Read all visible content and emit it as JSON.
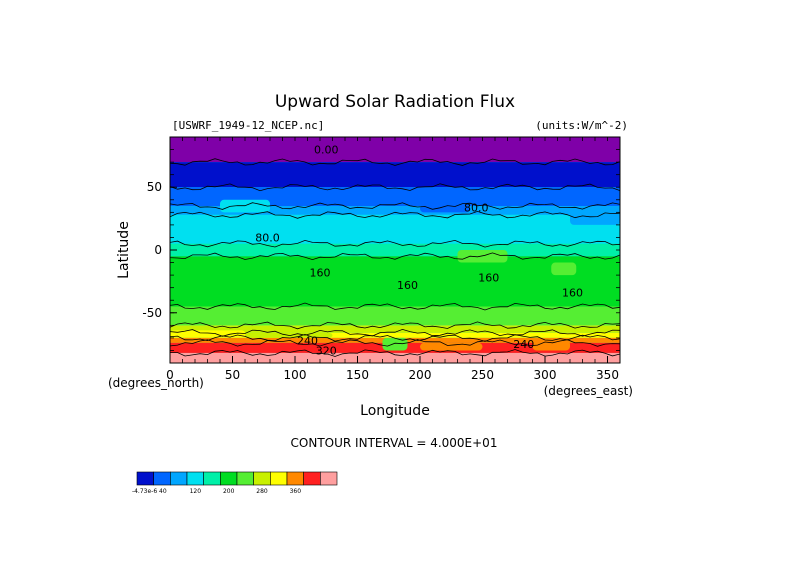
{
  "chart_data": {
    "type": "heatmap",
    "title": "Upward Solar Radiation Flux",
    "file_label": "[USWRF_1949-12_NCEP.nc]",
    "units_label": "(units:W/m^-2)",
    "xlabel": "Longitude",
    "ylabel": "Latitude",
    "x_unit_label": "(degrees_east)",
    "y_unit_label": "(degrees_north)",
    "xlim": [
      0,
      360
    ],
    "ylim": [
      -90,
      90
    ],
    "x_ticks": [
      "0",
      "50",
      "100",
      "150",
      "200",
      "250",
      "300",
      "350"
    ],
    "x_tick_values": [
      0,
      50,
      100,
      150,
      200,
      250,
      300,
      350
    ],
    "y_ticks": [
      "50",
      "0",
      "-50"
    ],
    "y_tick_values": [
      50,
      0,
      -50
    ],
    "contour_interval_label": "CONTOUR INTERVAL = 4.000E+01",
    "contour_labels": [
      {
        "text": "0.00",
        "x": 125,
        "y": 80
      },
      {
        "text": "80.0",
        "x": 245,
        "y": 34
      },
      {
        "text": "80.0",
        "x": 78,
        "y": 10
      },
      {
        "text": "160",
        "x": 120,
        "y": -18
      },
      {
        "text": "160",
        "x": 190,
        "y": -28
      },
      {
        "text": "160",
        "x": 322,
        "y": -34
      },
      {
        "text": "160",
        "x": 255,
        "y": -22
      },
      {
        "text": "240",
        "x": 110,
        "y": -72
      },
      {
        "text": "320",
        "x": 125,
        "y": -80
      },
      {
        "text": "240",
        "x": 283,
        "y": -75
      }
    ],
    "bands": [
      {
        "lat": [
          70,
          90
        ],
        "value": 0,
        "color": "#7f00a8"
      },
      {
        "lat": [
          50,
          70
        ],
        "value": 30,
        "color": "#0010cc"
      },
      {
        "lat": [
          35,
          50
        ],
        "value": 60,
        "color": "#0066ff"
      },
      {
        "lat": [
          28,
          35
        ],
        "value": 75,
        "color": "#00a6ff"
      },
      {
        "lat": [
          5,
          28
        ],
        "value": 100,
        "color": "#00e0f0"
      },
      {
        "lat": [
          -5,
          5
        ],
        "value": 130,
        "color": "#00f0a8"
      },
      {
        "lat": [
          -45,
          -5
        ],
        "value": 170,
        "color": "#00dd22"
      },
      {
        "lat": [
          -60,
          -45
        ],
        "value": 200,
        "color": "#55ee33"
      },
      {
        "lat": [
          -66,
          -60
        ],
        "value": 220,
        "color": "#c8f000"
      },
      {
        "lat": [
          -70,
          -66
        ],
        "value": 260,
        "color": "#ffff00"
      },
      {
        "lat": [
          -74,
          -70
        ],
        "value": 290,
        "color": "#ff8800"
      },
      {
        "lat": [
          -82,
          -74
        ],
        "value": 320,
        "color": "#ff2020"
      },
      {
        "lat": [
          -90,
          -82
        ],
        "value": 360,
        "color": "#ff9f9f"
      }
    ],
    "patches": [
      {
        "lon": [
          170,
          190
        ],
        "lat": [
          -80,
          -70
        ],
        "color": "#55ee33"
      },
      {
        "lon": [
          200,
          250
        ],
        "lat": [
          -80,
          -74
        ],
        "color": "#ff8800"
      },
      {
        "lon": [
          290,
          320
        ],
        "lat": [
          -80,
          -72
        ],
        "color": "#ff8800"
      },
      {
        "lon": [
          0,
          60
        ],
        "lat": [
          -68,
          -64
        ],
        "color": "#ffff00"
      },
      {
        "lon": [
          60,
          130
        ],
        "lat": [
          -70,
          -66
        ],
        "color": "#c8f000"
      },
      {
        "lon": [
          230,
          270
        ],
        "lat": [
          -10,
          0
        ],
        "color": "#55ee33"
      },
      {
        "lon": [
          305,
          325
        ],
        "lat": [
          -20,
          -10
        ],
        "color": "#55ee33"
      },
      {
        "lon": [
          40,
          80
        ],
        "lat": [
          30,
          40
        ],
        "color": "#00e0f0"
      },
      {
        "lon": [
          200,
          240
        ],
        "lat": [
          30,
          36
        ],
        "color": "#0066ff"
      },
      {
        "lon": [
          320,
          360
        ],
        "lat": [
          20,
          30
        ],
        "color": "#00a6ff"
      }
    ],
    "colorbar": {
      "colors": [
        "#0010cc",
        "#0066ff",
        "#00a6ff",
        "#00e0f0",
        "#00f0a8",
        "#00dd22",
        "#55ee33",
        "#c8f000",
        "#ffff00",
        "#ff8800",
        "#ff2020",
        "#ff9f9f"
      ],
      "labels": [
        "-4.73e-6 40",
        "120",
        "200",
        "280",
        "360"
      ]
    }
  }
}
